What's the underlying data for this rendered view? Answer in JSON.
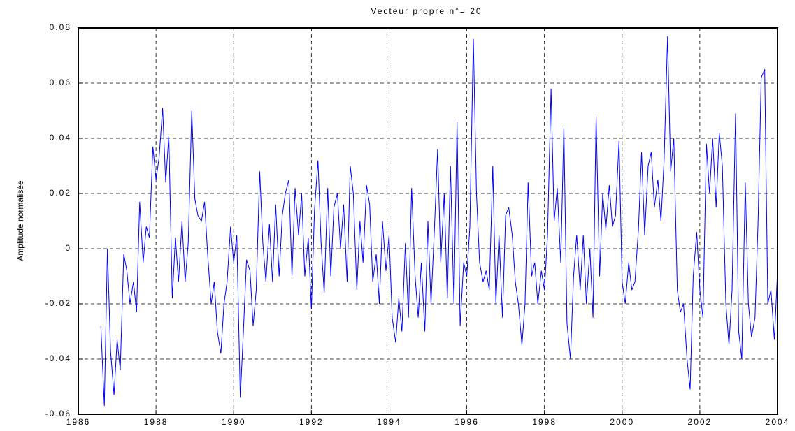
{
  "chart_data": {
    "type": "line",
    "title": "Vecteur propre n°= 20",
    "ylabel": "Amplitude normalisée",
    "x": [
      1986.58,
      1986.67,
      1986.75,
      1986.83,
      1986.92,
      1987.0,
      1987.08,
      1987.17,
      1987.25,
      1987.33,
      1987.42,
      1987.5,
      1987.58,
      1987.67,
      1987.75,
      1987.83,
      1987.92,
      1988.0,
      1988.08,
      1988.17,
      1988.25,
      1988.33,
      1988.42,
      1988.5,
      1988.58,
      1988.67,
      1988.75,
      1988.83,
      1988.92,
      1989.0,
      1989.08,
      1989.17,
      1989.25,
      1989.33,
      1989.42,
      1989.5,
      1989.58,
      1989.67,
      1989.75,
      1989.83,
      1989.92,
      1990.0,
      1990.08,
      1990.17,
      1990.25,
      1990.33,
      1990.42,
      1990.5,
      1990.58,
      1990.67,
      1990.75,
      1990.83,
      1990.92,
      1991.0,
      1991.08,
      1991.17,
      1991.25,
      1991.33,
      1991.42,
      1991.5,
      1991.58,
      1991.67,
      1991.75,
      1991.83,
      1991.92,
      1992.0,
      1992.08,
      1992.17,
      1992.25,
      1992.33,
      1992.42,
      1992.5,
      1992.58,
      1992.67,
      1992.75,
      1992.83,
      1992.92,
      1993.0,
      1993.08,
      1993.17,
      1993.25,
      1993.33,
      1993.42,
      1993.5,
      1993.58,
      1993.67,
      1993.75,
      1993.83,
      1993.92,
      1994.0,
      1994.08,
      1994.17,
      1994.25,
      1994.33,
      1994.42,
      1994.5,
      1994.58,
      1994.67,
      1994.75,
      1994.83,
      1994.92,
      1995.0,
      1995.08,
      1995.17,
      1995.25,
      1995.33,
      1995.42,
      1995.5,
      1995.58,
      1995.67,
      1995.75,
      1995.83,
      1995.92,
      1996.0,
      1996.08,
      1996.17,
      1996.25,
      1996.33,
      1996.42,
      1996.5,
      1996.58,
      1996.67,
      1996.75,
      1996.83,
      1996.92,
      1997.0,
      1997.08,
      1997.17,
      1997.25,
      1997.33,
      1997.42,
      1997.5,
      1997.58,
      1997.67,
      1997.75,
      1997.83,
      1997.92,
      1998.0,
      1998.08,
      1998.17,
      1998.25,
      1998.33,
      1998.42,
      1998.5,
      1998.58,
      1998.67,
      1998.75,
      1998.83,
      1998.92,
      1999.0,
      1999.08,
      1999.17,
      1999.25,
      1999.33,
      1999.42,
      1999.5,
      1999.58,
      1999.67,
      1999.75,
      1999.83,
      1999.92,
      2000.0,
      2000.08,
      2000.17,
      2000.25,
      2000.33,
      2000.42,
      2000.5,
      2000.58,
      2000.67,
      2000.75,
      2000.83,
      2000.92,
      2001.0,
      2001.08,
      2001.17,
      2001.25,
      2001.33,
      2001.42,
      2001.5,
      2001.58,
      2001.67,
      2001.75,
      2001.83,
      2001.92,
      2002.0,
      2002.08,
      2002.17,
      2002.25,
      2002.33,
      2002.42,
      2002.5,
      2002.58,
      2002.67,
      2002.75,
      2002.83,
      2002.92,
      2003.0,
      2003.08,
      2003.17,
      2003.25,
      2003.33,
      2003.42,
      2003.5,
      2003.58,
      2003.67,
      2003.75,
      2003.83,
      2003.92,
      2004.0
    ],
    "values": [
      -0.028,
      -0.057,
      0.0,
      -0.037,
      -0.053,
      -0.033,
      -0.044,
      -0.002,
      -0.008,
      -0.02,
      -0.012,
      -0.023,
      0.017,
      -0.005,
      0.008,
      0.004,
      0.037,
      0.025,
      0.033,
      0.051,
      0.024,
      0.041,
      -0.018,
      0.004,
      -0.012,
      0.01,
      -0.012,
      0.002,
      0.05,
      0.018,
      0.012,
      0.01,
      0.017,
      -0.002,
      -0.02,
      -0.012,
      -0.03,
      -0.038,
      -0.02,
      -0.012,
      0.008,
      -0.005,
      0.005,
      -0.054,
      -0.03,
      -0.004,
      -0.008,
      -0.028,
      -0.015,
      0.028,
      0.002,
      -0.012,
      0.009,
      -0.012,
      0.016,
      -0.01,
      0.012,
      0.02,
      0.025,
      -0.01,
      0.022,
      0.005,
      0.02,
      -0.01,
      0.004,
      -0.022,
      0.014,
      0.032,
      0.002,
      -0.016,
      0.022,
      -0.01,
      0.015,
      0.02,
      0.0,
      0.016,
      -0.012,
      0.03,
      0.02,
      -0.015,
      0.01,
      -0.005,
      0.023,
      0.016,
      -0.012,
      -0.002,
      -0.02,
      0.01,
      -0.008,
      0.005,
      -0.025,
      -0.034,
      -0.018,
      -0.03,
      0.002,
      -0.025,
      0.022,
      -0.01,
      -0.025,
      -0.005,
      -0.03,
      0.01,
      -0.02,
      0.008,
      0.036,
      -0.005,
      0.02,
      -0.018,
      0.03,
      -0.02,
      0.046,
      -0.028,
      -0.005,
      -0.01,
      0.008,
      0.076,
      0.02,
      -0.005,
      -0.012,
      -0.008,
      -0.015,
      0.03,
      -0.02,
      0.005,
      -0.025,
      0.012,
      0.015,
      0.005,
      -0.012,
      -0.02,
      -0.035,
      -0.02,
      0.024,
      -0.01,
      -0.005,
      -0.02,
      -0.008,
      -0.015,
      0.005,
      0.058,
      0.01,
      0.022,
      -0.005,
      0.044,
      -0.027,
      -0.04,
      -0.01,
      0.005,
      -0.015,
      0.005,
      -0.02,
      0.0,
      -0.025,
      0.048,
      -0.01,
      0.02,
      0.007,
      0.023,
      0.008,
      0.012,
      0.039,
      -0.012,
      -0.02,
      -0.005,
      -0.015,
      -0.012,
      0.007,
      0.035,
      0.005,
      0.03,
      0.035,
      0.015,
      0.025,
      0.01,
      0.032,
      0.077,
      0.028,
      0.04,
      -0.015,
      -0.023,
      -0.02,
      -0.04,
      -0.051,
      -0.01,
      0.006,
      -0.015,
      -0.025,
      0.038,
      0.02,
      0.04,
      0.015,
      0.042,
      0.03,
      -0.02,
      -0.035,
      -0.015,
      0.049,
      -0.03,
      -0.04,
      0.024,
      -0.02,
      -0.032,
      -0.025,
      0.01,
      0.062,
      0.065,
      -0.02,
      -0.015,
      -0.033,
      -0.008
    ],
    "color": "#0000ff",
    "xlim": [
      1986,
      2004
    ],
    "xticks": [
      1986,
      1988,
      1990,
      1992,
      1994,
      1996,
      1998,
      2000,
      2002,
      2004
    ],
    "ylim": [
      -0.06,
      0.08
    ],
    "yticks": [
      -0.06,
      -0.04,
      -0.02,
      0,
      0.02,
      0.04,
      0.06,
      0.08
    ],
    "grid": true
  }
}
